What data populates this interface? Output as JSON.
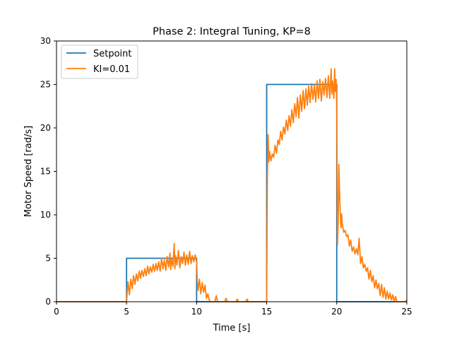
{
  "chart_data": {
    "type": "line",
    "title": "Phase 2: Integral Tuning, KP=8",
    "xlabel": "Time [s]",
    "ylabel": "Motor Speed [rad/s]",
    "xlim": [
      0,
      25
    ],
    "ylim": [
      0,
      30
    ],
    "xticks": [
      0,
      5,
      10,
      15,
      20,
      25
    ],
    "yticks": [
      0,
      5,
      10,
      15,
      20,
      25,
      30
    ],
    "grid": false,
    "legend_position": "top-left",
    "series": [
      {
        "name": "Setpoint",
        "color": "#1f77b4",
        "points": [
          [
            0,
            0
          ],
          [
            5,
            0
          ],
          [
            5,
            5
          ],
          [
            10,
            5
          ],
          [
            10,
            0
          ],
          [
            15,
            0
          ],
          [
            15,
            25
          ],
          [
            20,
            25
          ],
          [
            20,
            0
          ],
          [
            25,
            0
          ]
        ]
      },
      {
        "name": "KI=0.01",
        "color": "#ff7f0e",
        "points": [
          [
            0,
            0
          ],
          [
            5,
            0
          ],
          [
            5.05,
            1.2
          ],
          [
            5.1,
            2.3
          ],
          [
            5.2,
            0.8
          ],
          [
            5.3,
            2.6
          ],
          [
            5.4,
            1.5
          ],
          [
            5.5,
            3.0
          ],
          [
            5.6,
            2.0
          ],
          [
            5.7,
            3.2
          ],
          [
            5.8,
            2.4
          ],
          [
            5.9,
            3.5
          ],
          [
            6.0,
            2.7
          ],
          [
            6.1,
            3.6
          ],
          [
            6.2,
            2.9
          ],
          [
            6.3,
            3.8
          ],
          [
            6.4,
            3.0
          ],
          [
            6.5,
            4.1
          ],
          [
            6.6,
            3.2
          ],
          [
            6.7,
            4.0
          ],
          [
            6.8,
            3.4
          ],
          [
            6.9,
            4.3
          ],
          [
            7.0,
            3.5
          ],
          [
            7.1,
            4.4
          ],
          [
            7.2,
            3.6
          ],
          [
            7.3,
            4.6
          ],
          [
            7.4,
            3.5
          ],
          [
            7.5,
            5.0
          ],
          [
            7.6,
            3.8
          ],
          [
            7.7,
            4.8
          ],
          [
            7.8,
            3.6
          ],
          [
            7.9,
            5.2
          ],
          [
            8.0,
            4.0
          ],
          [
            8.1,
            5.6
          ],
          [
            8.15,
            3.7
          ],
          [
            8.2,
            4.9
          ],
          [
            8.3,
            4.1
          ],
          [
            8.4,
            6.7
          ],
          [
            8.45,
            3.8
          ],
          [
            8.5,
            5.3
          ],
          [
            8.6,
            4.2
          ],
          [
            8.7,
            5.9
          ],
          [
            8.8,
            3.9
          ],
          [
            8.9,
            5.2
          ],
          [
            9.0,
            4.4
          ],
          [
            9.1,
            5.7
          ],
          [
            9.2,
            4.2
          ],
          [
            9.3,
            5.4
          ],
          [
            9.4,
            4.3
          ],
          [
            9.5,
            5.8
          ],
          [
            9.6,
            4.4
          ],
          [
            9.7,
            5.3
          ],
          [
            9.8,
            4.6
          ],
          [
            9.9,
            5.4
          ],
          [
            10.0,
            4.5
          ],
          [
            10.05,
            2.4
          ],
          [
            10.1,
            1.3
          ],
          [
            10.2,
            2.6
          ],
          [
            10.3,
            0.9
          ],
          [
            10.4,
            2.2
          ],
          [
            10.5,
            1.1
          ],
          [
            10.6,
            1.9
          ],
          [
            10.7,
            0.4
          ],
          [
            10.8,
            0.9
          ],
          [
            10.9,
            0.2
          ],
          [
            11.0,
            0.0
          ],
          [
            11.3,
            0.0
          ],
          [
            11.4,
            0.7
          ],
          [
            11.5,
            0.0
          ],
          [
            12.0,
            0.0
          ],
          [
            12.1,
            0.4
          ],
          [
            12.2,
            0.0
          ],
          [
            12.8,
            0.0
          ],
          [
            12.9,
            0.3
          ],
          [
            13.0,
            0.0
          ],
          [
            13.5,
            0.0
          ],
          [
            13.6,
            0.3
          ],
          [
            13.7,
            0.0
          ],
          [
            15.0,
            0.0
          ],
          [
            15.05,
            14.5
          ],
          [
            15.1,
            19.2
          ],
          [
            15.15,
            16.1
          ],
          [
            15.2,
            17.3
          ],
          [
            15.3,
            16.2
          ],
          [
            15.4,
            17.0
          ],
          [
            15.5,
            16.6
          ],
          [
            15.6,
            18.0
          ],
          [
            15.7,
            17.1
          ],
          [
            15.8,
            18.6
          ],
          [
            15.9,
            18.1
          ],
          [
            16.0,
            19.6
          ],
          [
            16.1,
            18.6
          ],
          [
            16.2,
            20.1
          ],
          [
            16.3,
            19.3
          ],
          [
            16.4,
            20.9
          ],
          [
            16.5,
            19.7
          ],
          [
            16.6,
            21.4
          ],
          [
            16.7,
            20.2
          ],
          [
            16.8,
            22.1
          ],
          [
            16.9,
            20.6
          ],
          [
            17.0,
            22.8
          ],
          [
            17.1,
            21.3
          ],
          [
            17.2,
            23.5
          ],
          [
            17.3,
            21.1
          ],
          [
            17.4,
            23.8
          ],
          [
            17.5,
            21.9
          ],
          [
            17.6,
            24.3
          ],
          [
            17.7,
            22.2
          ],
          [
            17.8,
            24.5
          ],
          [
            17.9,
            22.6
          ],
          [
            18.0,
            24.8
          ],
          [
            18.1,
            22.9
          ],
          [
            18.2,
            25.1
          ],
          [
            18.3,
            23.3
          ],
          [
            18.4,
            24.9
          ],
          [
            18.5,
            23.0
          ],
          [
            18.6,
            25.4
          ],
          [
            18.7,
            23.4
          ],
          [
            18.8,
            25.6
          ],
          [
            18.9,
            23.1
          ],
          [
            19.0,
            25.3
          ],
          [
            19.1,
            23.8
          ],
          [
            19.2,
            25.7
          ],
          [
            19.3,
            23.5
          ],
          [
            19.4,
            26.0
          ],
          [
            19.5,
            23.4
          ],
          [
            19.6,
            26.8
          ],
          [
            19.65,
            23.9
          ],
          [
            19.7,
            25.4
          ],
          [
            19.8,
            23.4
          ],
          [
            19.85,
            26.8
          ],
          [
            19.9,
            24.2
          ],
          [
            19.95,
            25.6
          ],
          [
            20.0,
            23.1
          ],
          [
            20.05,
            6.5
          ],
          [
            20.1,
            9.0
          ],
          [
            20.15,
            15.8
          ],
          [
            20.2,
            12.6
          ],
          [
            20.25,
            10.0
          ],
          [
            20.3,
            8.5
          ],
          [
            20.35,
            10.1
          ],
          [
            20.4,
            8.9
          ],
          [
            20.5,
            8.0
          ],
          [
            20.6,
            8.2
          ],
          [
            20.7,
            7.5
          ],
          [
            20.8,
            7.7
          ],
          [
            20.9,
            6.4
          ],
          [
            21.0,
            7.1
          ],
          [
            21.1,
            5.8
          ],
          [
            21.2,
            6.3
          ],
          [
            21.3,
            5.5
          ],
          [
            21.4,
            6.1
          ],
          [
            21.5,
            5.4
          ],
          [
            21.6,
            7.3
          ],
          [
            21.7,
            4.4
          ],
          [
            21.8,
            5.2
          ],
          [
            21.9,
            3.9
          ],
          [
            22.0,
            4.3
          ],
          [
            22.1,
            3.5
          ],
          [
            22.2,
            3.9
          ],
          [
            22.3,
            2.6
          ],
          [
            22.4,
            3.6
          ],
          [
            22.5,
            2.3
          ],
          [
            22.6,
            3.0
          ],
          [
            22.7,
            1.6
          ],
          [
            22.8,
            2.5
          ],
          [
            22.9,
            1.5
          ],
          [
            23.0,
            2.1
          ],
          [
            23.1,
            0.7
          ],
          [
            23.2,
            2.0
          ],
          [
            23.3,
            0.5
          ],
          [
            23.4,
            1.6
          ],
          [
            23.5,
            0.3
          ],
          [
            23.6,
            1.2
          ],
          [
            23.7,
            0.3
          ],
          [
            23.8,
            1.0
          ],
          [
            23.9,
            0.2
          ],
          [
            24.0,
            0.8
          ],
          [
            24.1,
            0.0
          ],
          [
            24.2,
            0.6
          ],
          [
            24.3,
            0.0
          ],
          [
            24.9,
            0.0
          ],
          [
            25.0,
            0.2
          ]
        ]
      }
    ]
  }
}
